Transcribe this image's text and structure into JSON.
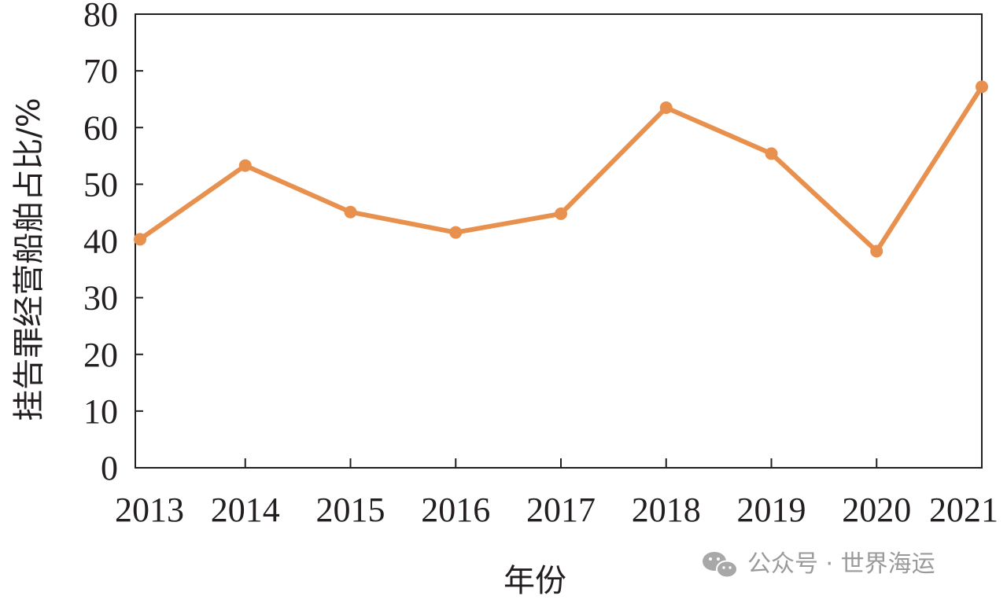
{
  "chart_data": {
    "type": "line",
    "title": "",
    "xlabel": "年份",
    "ylabel": "挂告罪经营船舶占比/%",
    "categories": [
      "2013",
      "2014",
      "2015",
      "2016",
      "2017",
      "2018",
      "2019",
      "2020",
      "2021"
    ],
    "series": [
      {
        "values": [
          40.3,
          53.3,
          45.1,
          41.5,
          44.8,
          63.5,
          55.4,
          38.2,
          67.2
        ],
        "color": "#E8914F"
      }
    ],
    "ylim": [
      0,
      80
    ],
    "yticks": [
      "0",
      "10",
      "20",
      "30",
      "40",
      "50",
      "60",
      "70",
      "80"
    ],
    "grid": false,
    "legend": "none"
  },
  "watermark": {
    "text": "公众号 · 世界海运",
    "icon": "wechat-icon"
  }
}
